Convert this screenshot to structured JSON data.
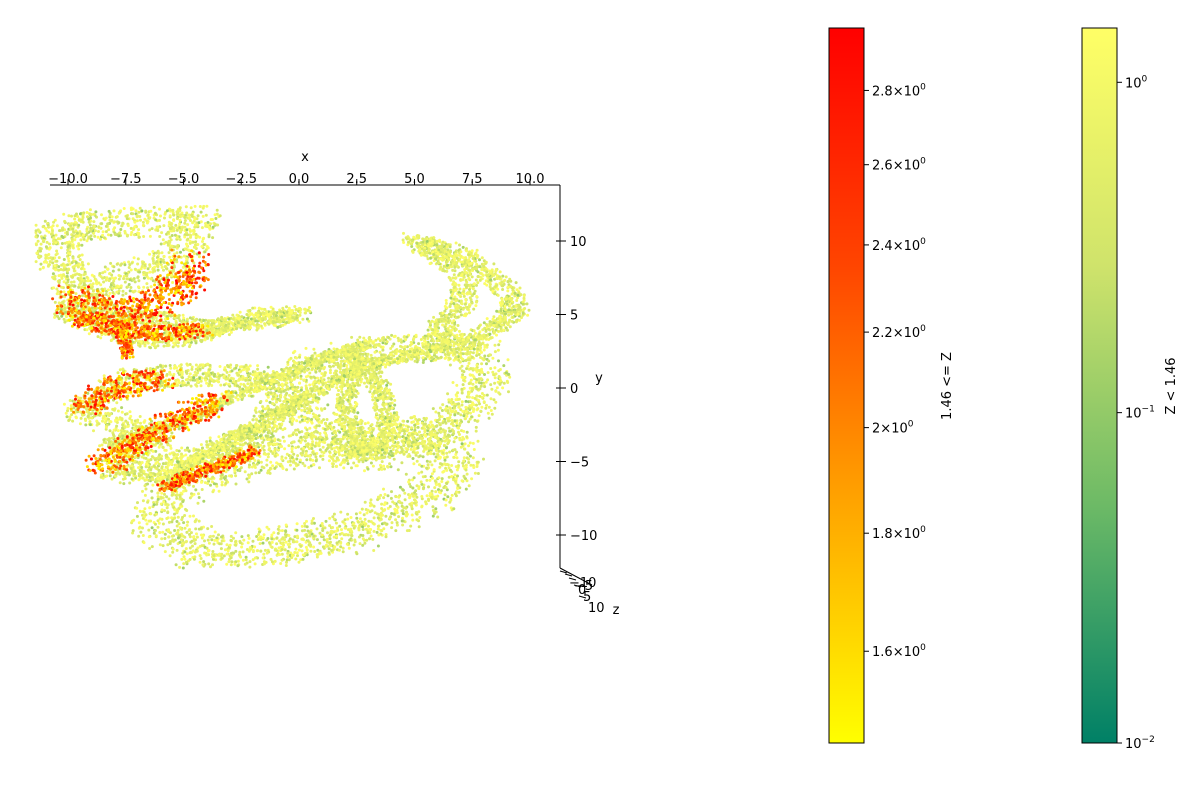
{
  "chart_data": {
    "type": "scatter",
    "subtype": "3d-scatter",
    "title": "",
    "xlabel": "x",
    "ylabel": "y",
    "zlabel": "z",
    "x_ticks": [
      "−10.0",
      "−7.5",
      "−5.0",
      "−2.5",
      "0.0",
      "2.5",
      "5.0",
      "7.5",
      "10.0"
    ],
    "x_tick_values": [
      -10.0,
      -7.5,
      -5.0,
      -2.5,
      0.0,
      2.5,
      5.0,
      7.5,
      10.0
    ],
    "y_ticks": [
      "10",
      "5",
      "0",
      "−5",
      "−10"
    ],
    "y_tick_values": [
      10,
      5,
      0,
      -5,
      -10
    ],
    "z_ticks": [
      "−10",
      "−5",
      "0",
      "5",
      "10"
    ],
    "z_tick_values": [
      -10,
      -5,
      0,
      5,
      10
    ],
    "xlim": [
      -10.5,
      11.0
    ],
    "ylim": [
      -12.5,
      13.5
    ],
    "grid": false,
    "point_size": "small",
    "series": [
      {
        "name": "Z < 1.46",
        "color_scale": "log",
        "colormap_stops": [
          "#008066",
          "#6dba66",
          "#cfe36b",
          "#ffff66"
        ],
        "range": [
          0.01,
          1.46
        ],
        "colorbar_ticks": [
          {
            "base": "10",
            "exp": "−2",
            "value": 0.01
          },
          {
            "base": "10",
            "exp": "−1",
            "value": 0.1
          },
          {
            "base": "10",
            "exp": "0",
            "value": 1
          }
        ]
      },
      {
        "name": "1.46 <= Z",
        "color_scale": "log",
        "colormap_stops": [
          "#ffff00",
          "#ffa500",
          "#ff4500",
          "#ff0000"
        ],
        "range": [
          1.46,
          2.98
        ],
        "colorbar_ticks": [
          {
            "mant": "1.6",
            "base": "10",
            "exp": "0",
            "value": 1.6
          },
          {
            "mant": "1.8",
            "base": "10",
            "exp": "0",
            "value": 1.8
          },
          {
            "mant": "2",
            "base": "10",
            "exp": "0",
            "value": 2.0
          },
          {
            "mant": "2.2",
            "base": "10",
            "exp": "0",
            "value": 2.2
          },
          {
            "mant": "2.4",
            "base": "10",
            "exp": "0",
            "value": 2.4
          },
          {
            "mant": "2.6",
            "base": "10",
            "exp": "0",
            "value": 2.6
          },
          {
            "mant": "2.8",
            "base": "10",
            "exp": "0",
            "value": 2.8
          }
        ]
      }
    ],
    "strands_low": [
      {
        "id": "upper-left-coil-top",
        "w": 1.0,
        "pts": [
          [
            -10.5,
            10.8
          ],
          [
            -8.0,
            11.2
          ],
          [
            -6.0,
            11.3
          ],
          [
            -4.3,
            11.5
          ],
          [
            -5.2,
            9.0
          ],
          [
            -7.0,
            7.6
          ],
          [
            -9.5,
            6.5
          ],
          [
            -10.3,
            8.5
          ],
          [
            -10.5,
            10.8
          ]
        ]
      },
      {
        "id": "upper-left-coil-bottom",
        "w": 0.55,
        "pts": [
          [
            -10.2,
            5.3
          ],
          [
            -8.5,
            4.0
          ],
          [
            -6.5,
            3.2
          ],
          [
            -4.8,
            3.4
          ],
          [
            -3.2,
            4.3
          ],
          [
            -1.2,
            5.0
          ],
          [
            0.0,
            5.0
          ],
          [
            -1.5,
            4.6
          ],
          [
            -4.0,
            4.1
          ],
          [
            -7.5,
            5.0
          ],
          [
            -9.5,
            5.8
          ],
          [
            -10.2,
            5.3
          ]
        ]
      },
      {
        "id": "upper-right-arc",
        "w": 0.55,
        "pts": [
          [
            5.0,
            10.0
          ],
          [
            7.0,
            9.0
          ],
          [
            8.5,
            7.5
          ],
          [
            9.5,
            5.5
          ],
          [
            8.5,
            4.0
          ],
          [
            7.0,
            2.8
          ],
          [
            6.0,
            4.0
          ],
          [
            7.2,
            6.0
          ],
          [
            7.0,
            8.0
          ],
          [
            5.0,
            10.0
          ]
        ]
      },
      {
        "id": "center-right-lobe",
        "w": 1.0,
        "pts": [
          [
            0.5,
            1.5
          ],
          [
            3.0,
            2.5
          ],
          [
            5.5,
            2.8
          ],
          [
            7.7,
            2.5
          ],
          [
            8.2,
            0.5
          ],
          [
            7.0,
            -1.8
          ],
          [
            5.0,
            -3.5
          ],
          [
            3.0,
            -4.8
          ],
          [
            1.0,
            -3.2
          ],
          [
            -0.2,
            -1.0
          ],
          [
            0.5,
            1.5
          ]
        ]
      },
      {
        "id": "bottom-bowl",
        "w": 1.2,
        "pts": [
          [
            -4.5,
            -6.0
          ],
          [
            -2.0,
            -4.5
          ],
          [
            1.0,
            -4.3
          ],
          [
            4.5,
            -3.0
          ],
          [
            6.8,
            -4.5
          ],
          [
            5.5,
            -7.5
          ],
          [
            2.5,
            -9.8
          ],
          [
            -1.0,
            -10.8
          ],
          [
            -4.0,
            -11.2
          ],
          [
            -6.2,
            -9.0
          ],
          [
            -5.5,
            -7.0
          ],
          [
            -4.5,
            -6.0
          ]
        ]
      },
      {
        "id": "mid-left-wing",
        "w": 0.75,
        "pts": [
          [
            -9.5,
            -1.5
          ],
          [
            -7.5,
            0.5
          ],
          [
            -5.0,
            0.9
          ],
          [
            -2.0,
            0.8
          ],
          [
            -0.5,
            -0.3
          ],
          [
            -1.5,
            -3.0
          ],
          [
            -4.0,
            -4.5
          ],
          [
            -7.0,
            -5.8
          ],
          [
            -8.0,
            -5.5
          ],
          [
            -6.0,
            -3.5
          ],
          [
            -8.5,
            -2.0
          ],
          [
            -9.5,
            -1.5
          ]
        ]
      },
      {
        "id": "diagonal-branch-a",
        "w": 0.35,
        "pts": [
          [
            -8.5,
            -4.0
          ],
          [
            -5.0,
            -2.2
          ],
          [
            -2.0,
            0.0
          ],
          [
            1.0,
            2.0
          ],
          [
            3.0,
            3.0
          ]
        ]
      },
      {
        "id": "diagonal-branch-b",
        "w": 0.35,
        "pts": [
          [
            -6.0,
            -6.5
          ],
          [
            -3.0,
            -3.5
          ],
          [
            0.5,
            -0.5
          ],
          [
            3.0,
            1.5
          ],
          [
            6.5,
            3.0
          ]
        ]
      },
      {
        "id": "vertical-fan",
        "w": 0.45,
        "pts": [
          [
            2.5,
            2.5
          ],
          [
            3.5,
            0.0
          ],
          [
            4.0,
            -3.0
          ],
          [
            2.8,
            -4.5
          ],
          [
            2.0,
            -1.5
          ],
          [
            2.5,
            2.5
          ]
        ]
      }
    ],
    "strands_high": [
      {
        "id": "upper-coil-band",
        "w": 0.9,
        "pts": [
          [
            -10.0,
            6.2
          ],
          [
            -8.8,
            5.4
          ],
          [
            -7.4,
            5.0
          ],
          [
            -6.2,
            5.6
          ],
          [
            -5.0,
            7.2
          ],
          [
            -4.6,
            8.6
          ]
        ]
      },
      {
        "id": "upper-coil-inner",
        "w": 0.5,
        "pts": [
          [
            -9.6,
            4.8
          ],
          [
            -8.3,
            4.2
          ],
          [
            -6.8,
            3.8
          ],
          [
            -5.5,
            3.7
          ],
          [
            -4.2,
            4.0
          ]
        ]
      },
      {
        "id": "red-drip",
        "w": 0.25,
        "pts": [
          [
            -7.8,
            4.0
          ],
          [
            -7.5,
            3.0
          ],
          [
            -7.4,
            2.2
          ]
        ]
      },
      {
        "id": "mid-left-tip",
        "w": 0.7,
        "pts": [
          [
            -9.3,
            -1.2
          ],
          [
            -8.3,
            -0.3
          ],
          [
            -7.0,
            0.4
          ],
          [
            -5.8,
            0.6
          ]
        ]
      },
      {
        "id": "lower-left-wedge",
        "w": 0.7,
        "pts": [
          [
            -8.6,
            -5.4
          ],
          [
            -7.5,
            -4.2
          ],
          [
            -6.0,
            -2.8
          ],
          [
            -4.5,
            -1.6
          ],
          [
            -3.5,
            -0.8
          ]
        ]
      },
      {
        "id": "bottom-bowl-rim",
        "w": 0.35,
        "pts": [
          [
            -5.8,
            -6.8
          ],
          [
            -4.4,
            -5.8
          ],
          [
            -3.0,
            -5.0
          ],
          [
            -1.8,
            -4.2
          ]
        ]
      }
    ]
  }
}
